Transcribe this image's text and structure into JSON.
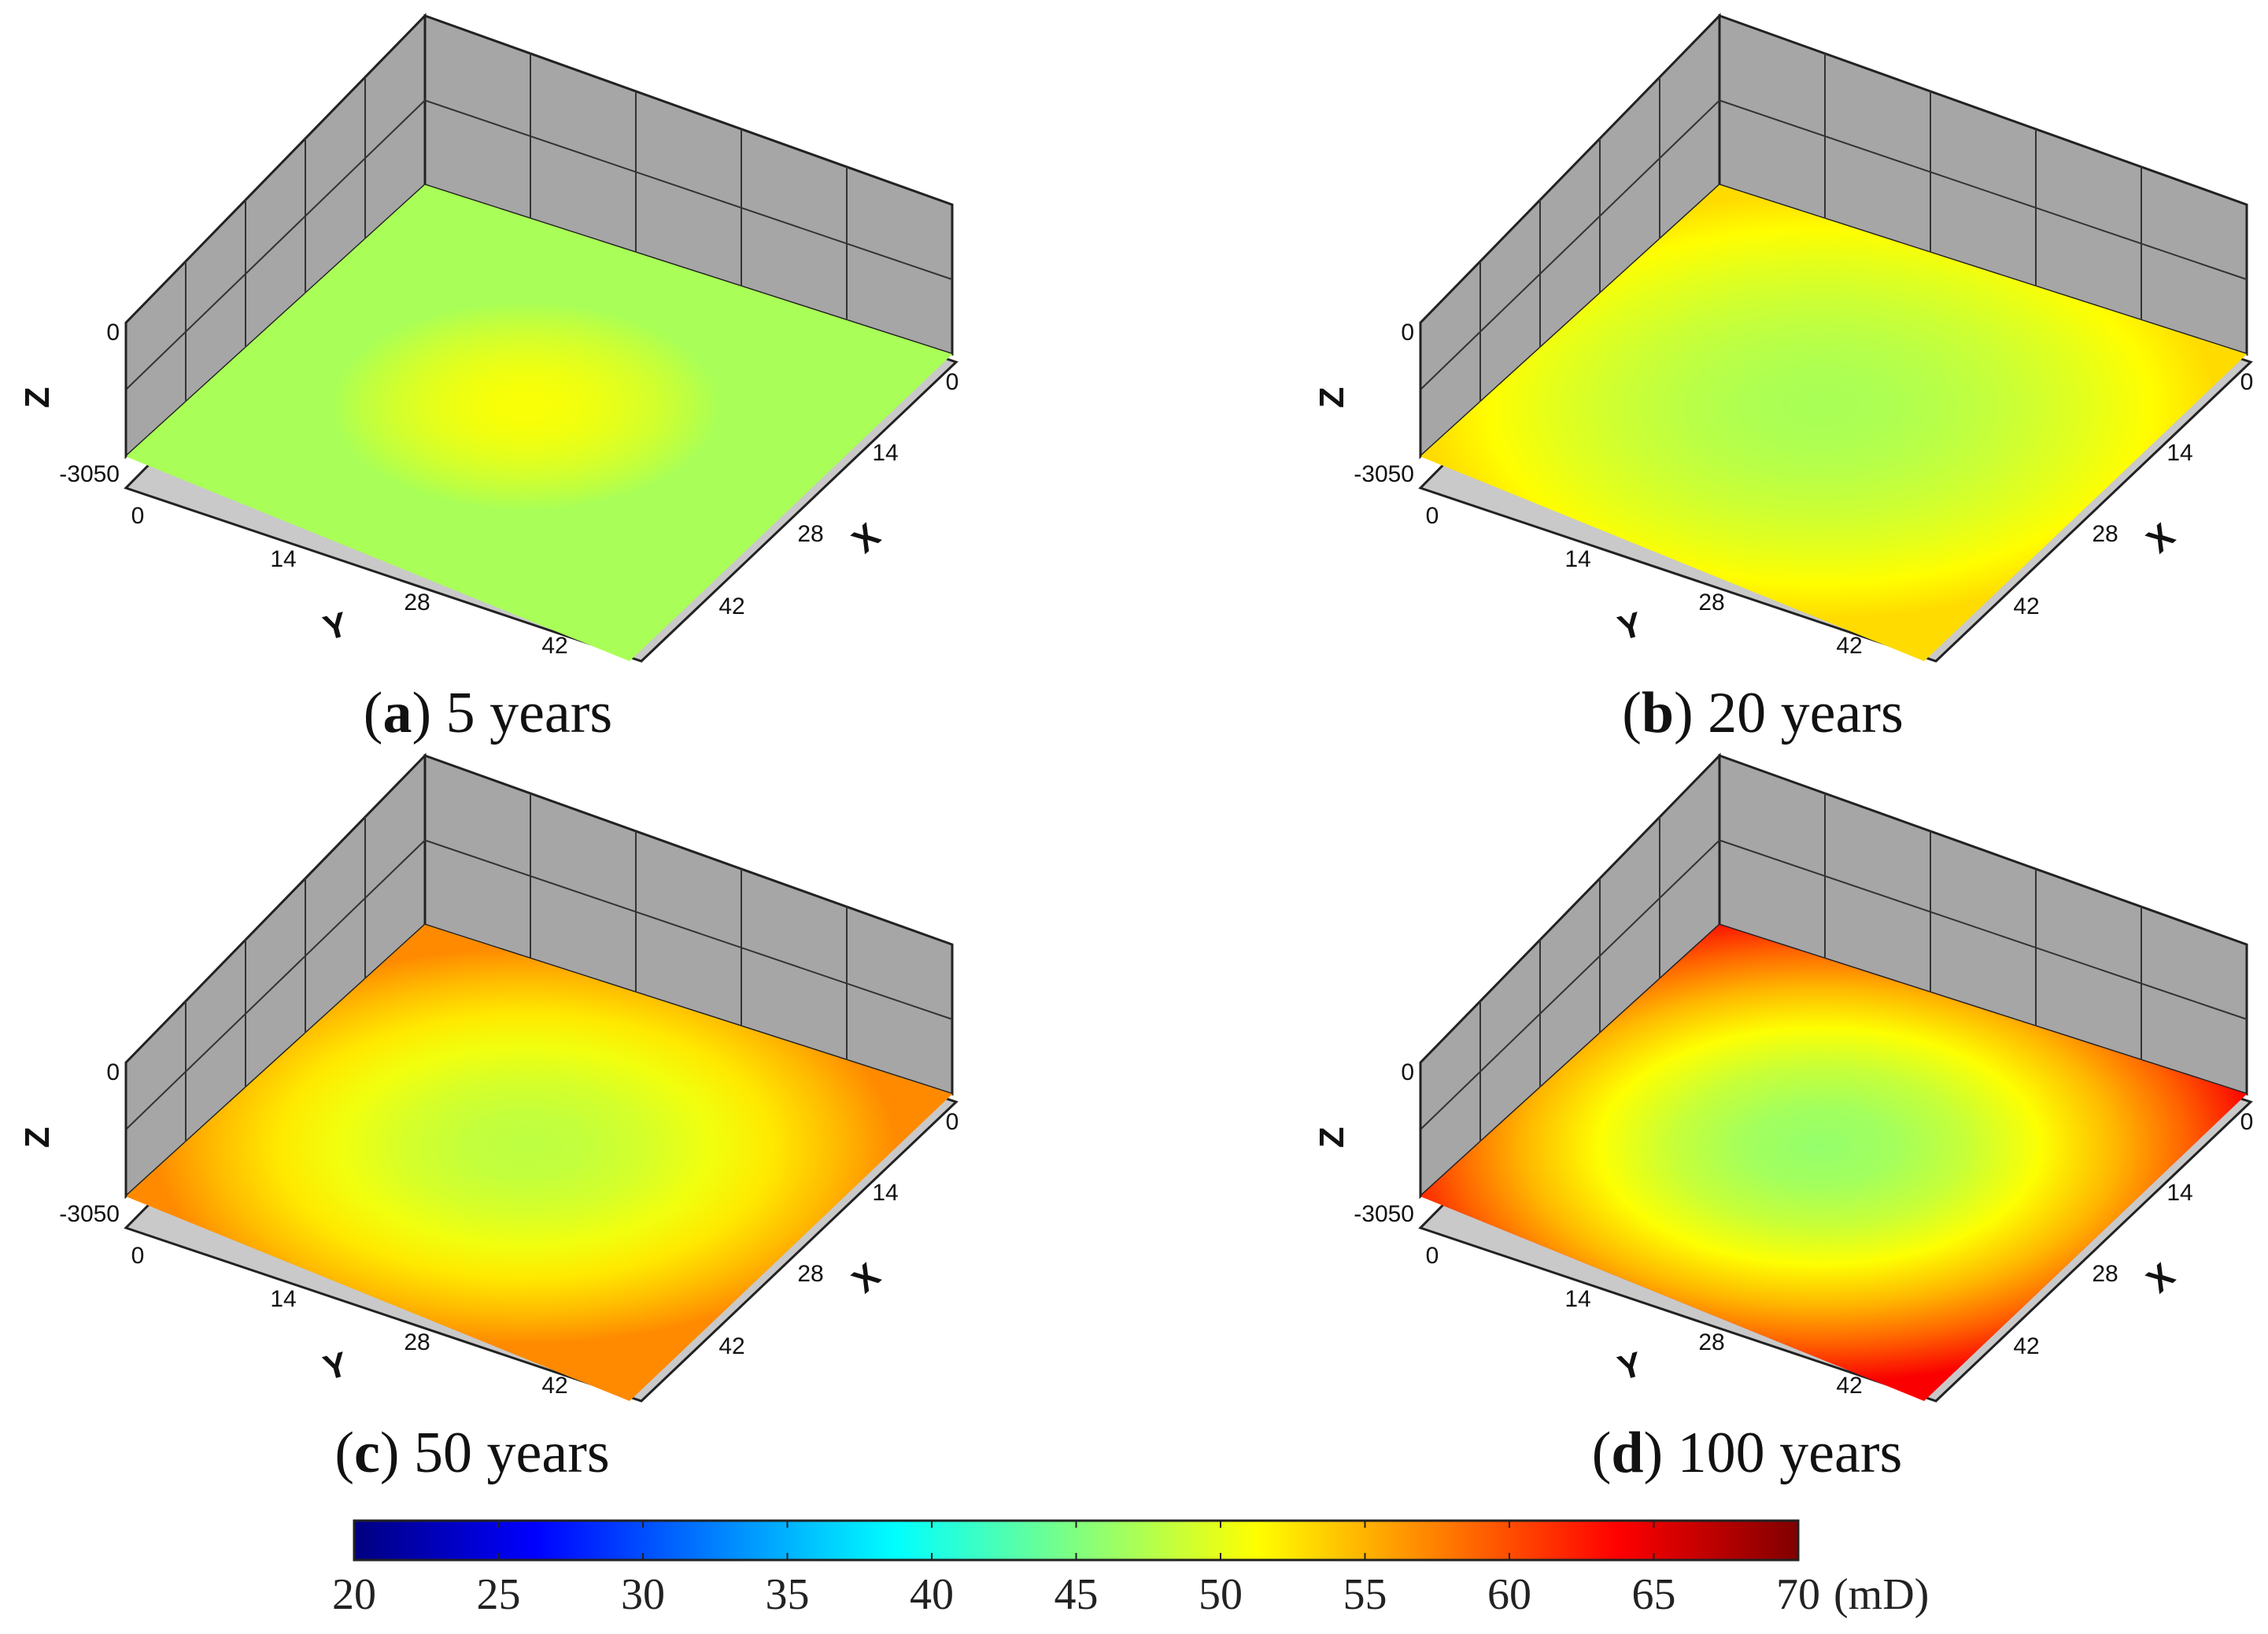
{
  "chart_data": [
    {
      "type": "heatmap",
      "id": "a",
      "caption_letter": "a",
      "caption_text": " 5 years",
      "field": {
        "background": 47,
        "center": 51,
        "radius_rel": 0.22
      },
      "axes": {
        "z_ticks": [
          "0",
          "-3050"
        ],
        "x_ticks": [
          "0",
          "14",
          "28",
          "42"
        ],
        "y_ticks": [
          "0",
          "14",
          "28",
          "42"
        ],
        "xlabel": "X",
        "ylabel": "Y",
        "zlabel": "Z"
      }
    },
    {
      "type": "heatmap",
      "id": "b",
      "caption_letter": "b",
      "caption_text": " 20 years",
      "field": {
        "background": 53,
        "center": 47,
        "radius_rel": 0.45
      },
      "axes": {
        "z_ticks": [
          "0",
          "-3050"
        ],
        "x_ticks": [
          "0",
          "14",
          "28",
          "42"
        ],
        "y_ticks": [
          "0",
          "14",
          "28",
          "42"
        ],
        "xlabel": "X",
        "ylabel": "Y",
        "zlabel": "Z"
      }
    },
    {
      "type": "heatmap",
      "id": "c",
      "caption_letter": "c",
      "caption_text": " 50 years",
      "field": {
        "background": 57,
        "center": 48,
        "radius_rel": 0.42
      },
      "axes": {
        "z_ticks": [
          "0",
          "-3050"
        ],
        "x_ticks": [
          "0",
          "14",
          "28",
          "42"
        ],
        "y_ticks": [
          "0",
          "14",
          "28",
          "42"
        ],
        "xlabel": "X",
        "ylabel": "Y",
        "zlabel": "Z"
      }
    },
    {
      "type": "heatmap",
      "id": "d",
      "caption_letter": "d",
      "caption_text": " 100 years",
      "field": {
        "background": 64,
        "center": 46,
        "radius_rel": 0.5
      },
      "axes": {
        "z_ticks": [
          "0",
          "-3050"
        ],
        "x_ticks": [
          "0",
          "14",
          "28",
          "42"
        ],
        "y_ticks": [
          "0",
          "14",
          "28",
          "42"
        ],
        "xlabel": "X",
        "ylabel": "Y",
        "zlabel": "Z"
      }
    }
  ],
  "colorbar": {
    "min": 20,
    "max": 70,
    "ticks": [
      "20",
      "25",
      "30",
      "35",
      "40",
      "45",
      "50",
      "55",
      "60",
      "65",
      "70"
    ],
    "unit": "(mD)",
    "stops": [
      "#000080",
      "#0000ff",
      "#0080ff",
      "#00ffff",
      "#80ff80",
      "#ffff00",
      "#ff8000",
      "#ff0000",
      "#800000"
    ]
  }
}
